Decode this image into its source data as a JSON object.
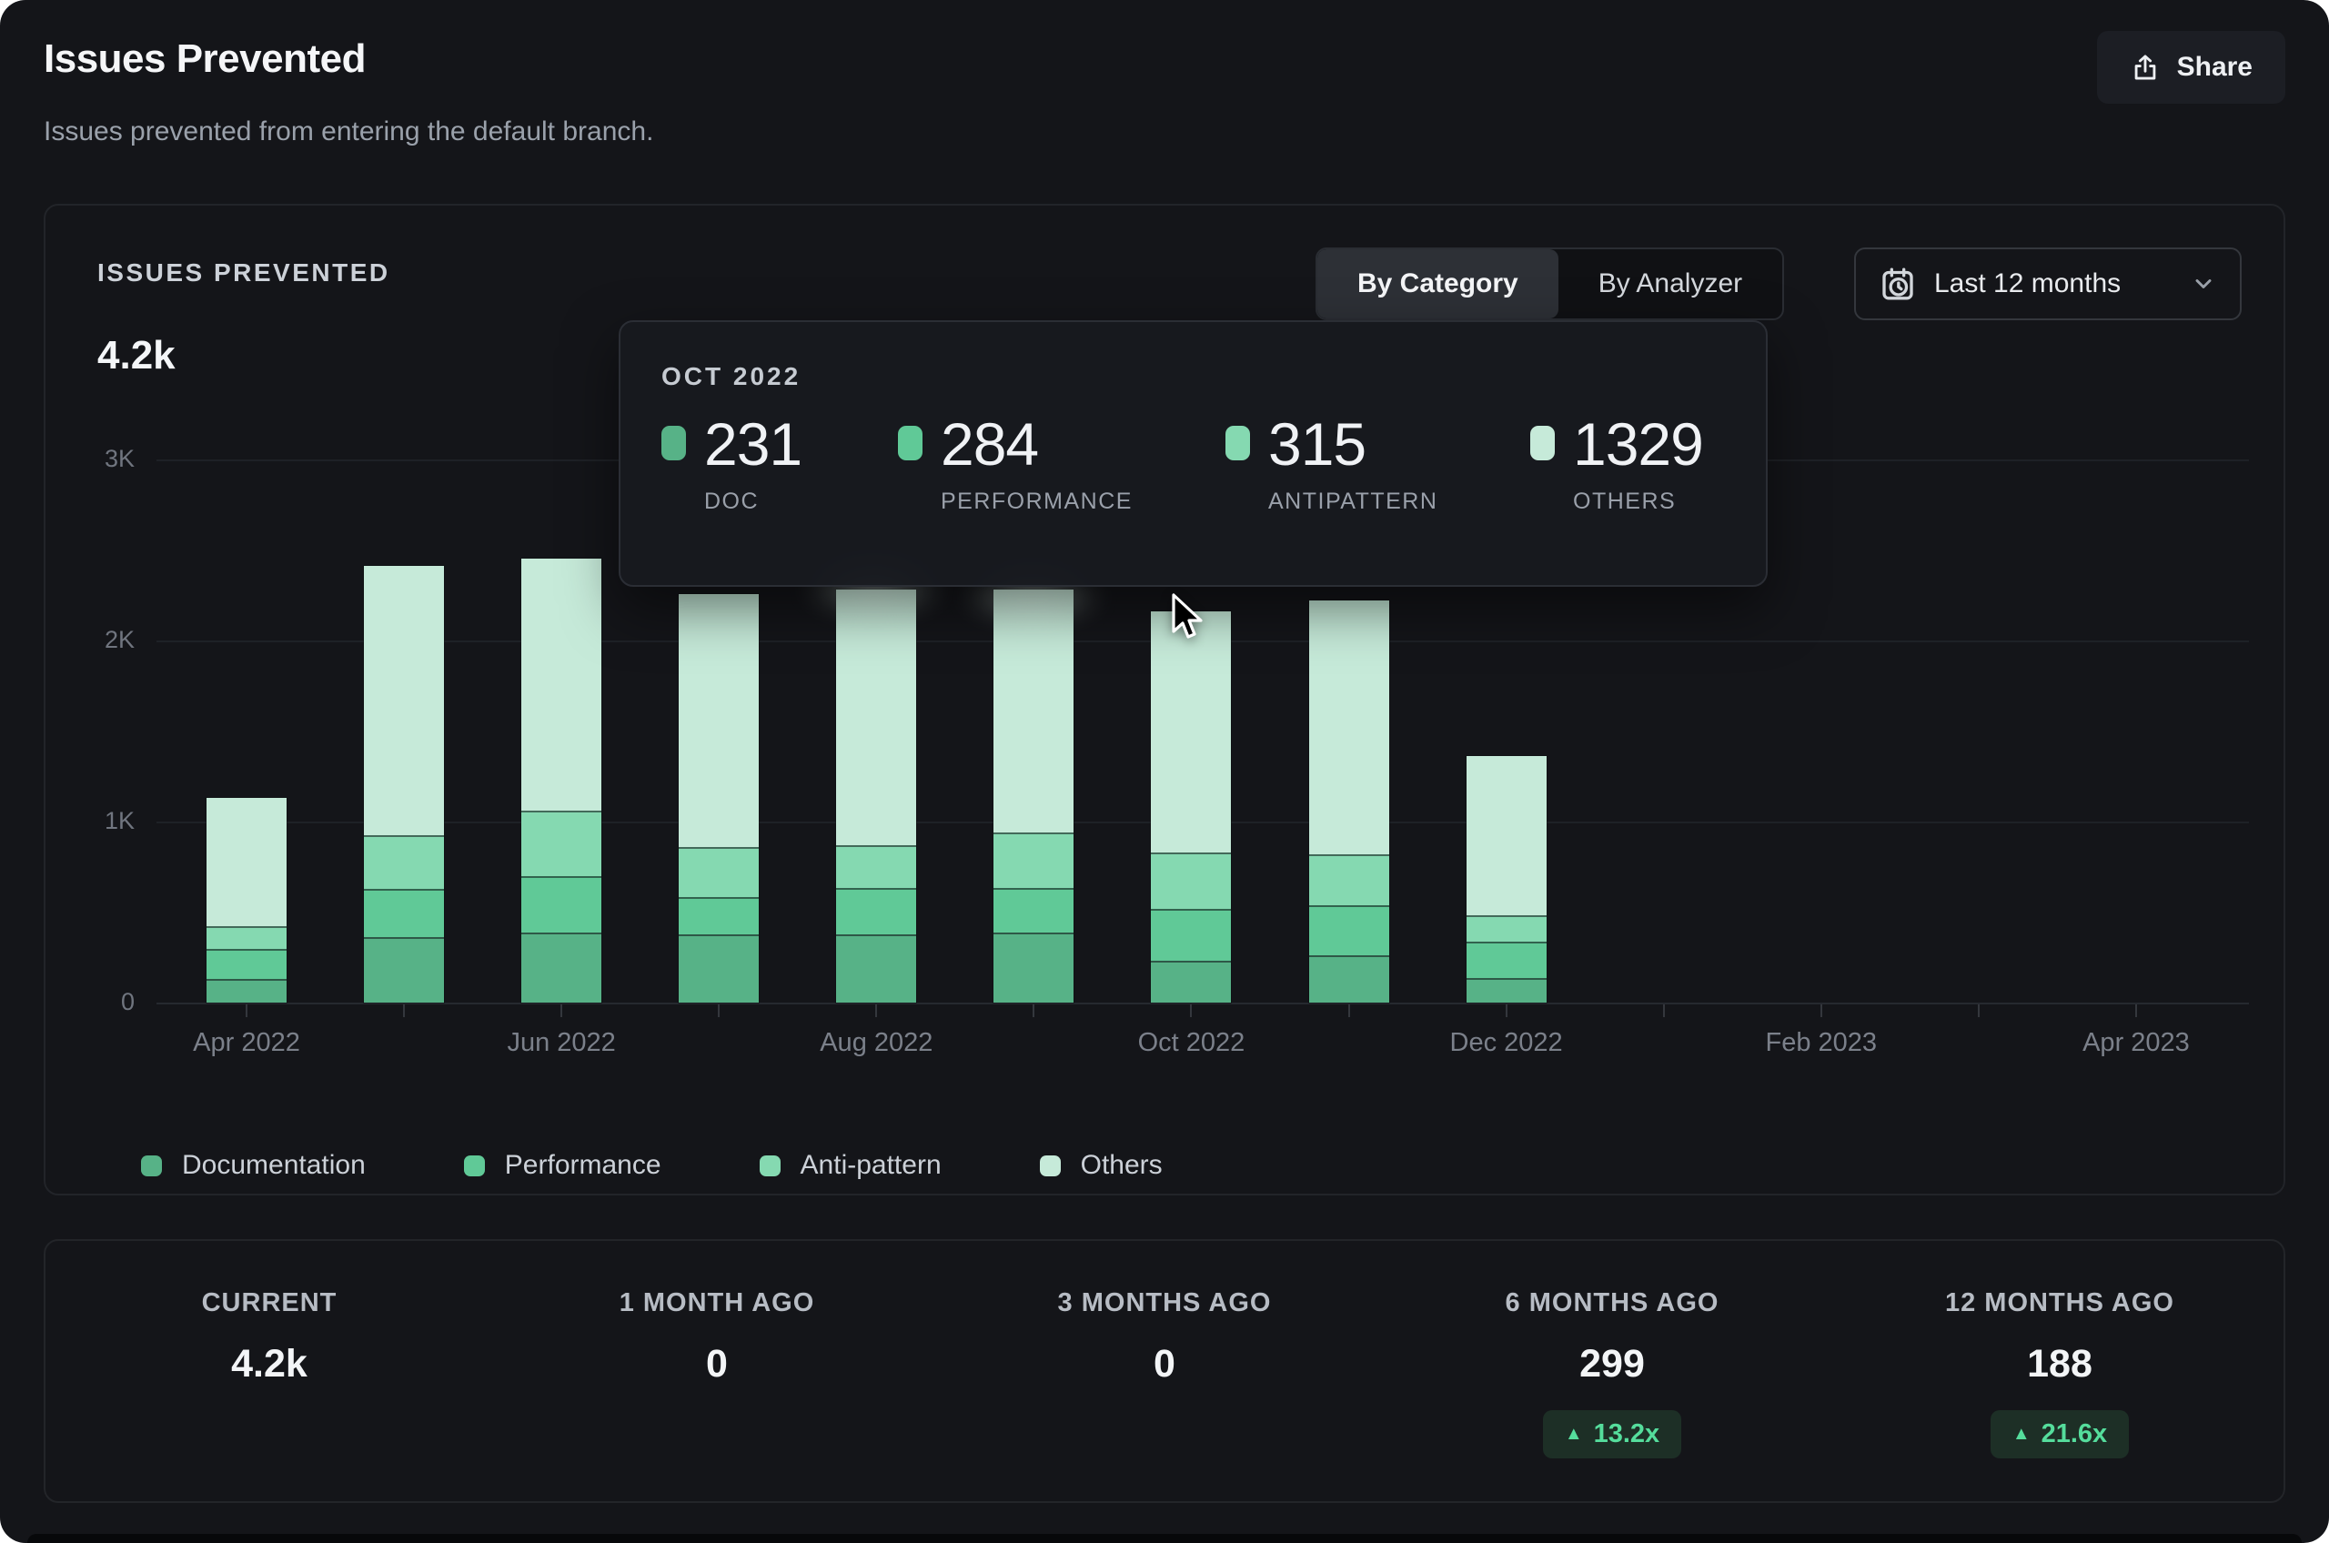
{
  "header": {
    "title": "Issues Prevented",
    "subtitle": "Issues prevented from entering the default branch.",
    "share_label": "Share"
  },
  "chart_card": {
    "label": "ISSUES PREVENTED",
    "total": "4.2k",
    "tabs": [
      {
        "label": "By Category",
        "active": true
      },
      {
        "label": "By Analyzer",
        "active": false
      }
    ],
    "range_selector": {
      "label": "Last 12 months"
    }
  },
  "tooltip": {
    "title": "OCT 2022",
    "items": [
      {
        "value": "231",
        "label": "DOC",
        "color": "#57b287"
      },
      {
        "value": "284",
        "label": "PERFORMANCE",
        "color": "#60c997"
      },
      {
        "value": "315",
        "label": "ANTIPATTERN",
        "color": "#85d9b1"
      },
      {
        "value": "1329",
        "label": "OTHERS",
        "color": "#c6ead9"
      }
    ]
  },
  "chart_data": {
    "type": "bar",
    "stacked": true,
    "title": "ISSUES PREVENTED",
    "xlabel": "",
    "ylabel": "",
    "ylim": [
      0,
      3000
    ],
    "grid": true,
    "legend_position": "bottom",
    "y_ticks": [
      "0",
      "1K",
      "2K",
      "3K"
    ],
    "months": [
      "Apr 2022",
      "May 2022",
      "Jun 2022",
      "Jul 2022",
      "Aug 2022",
      "Sep 2022",
      "Oct 2022",
      "Nov 2022",
      "Dec 2022",
      "Jan 2023",
      "Feb 2023",
      "Mar 2023",
      "Apr 2023"
    ],
    "x_tick_labels": [
      "Apr 2022",
      "Jun 2022",
      "Aug 2022",
      "Oct 2022",
      "Dec 2022",
      "Feb 2023",
      "Apr 2023"
    ],
    "series": [
      {
        "name": "Documentation",
        "color": "#57b287",
        "values": [
          130,
          360,
          385,
          375,
          375,
          385,
          231,
          260,
          135,
          0,
          0,
          0,
          0
        ]
      },
      {
        "name": "Performance",
        "color": "#60c997",
        "values": [
          165,
          270,
          315,
          210,
          260,
          250,
          284,
          280,
          200,
          0,
          0,
          0,
          0
        ]
      },
      {
        "name": "Anti-pattern",
        "color": "#85d9b1",
        "values": [
          125,
          295,
          360,
          275,
          235,
          305,
          315,
          280,
          145,
          0,
          0,
          0,
          0
        ]
      },
      {
        "name": "Others",
        "color": "#c6ead9",
        "values": [
          710,
          1485,
          1390,
          1395,
          1410,
          1340,
          1329,
          1400,
          880,
          0,
          0,
          0,
          0
        ]
      }
    ],
    "hovered_month": "Oct 2022"
  },
  "summary": {
    "columns": [
      {
        "label": "CURRENT",
        "value": "4.2k",
        "badge": null
      },
      {
        "label": "1 MONTH AGO",
        "value": "0",
        "badge": null
      },
      {
        "label": "3 MONTHS AGO",
        "value": "0",
        "badge": null
      },
      {
        "label": "6 MONTHS AGO",
        "value": "299",
        "badge": "13.2x"
      },
      {
        "label": "12 MONTHS AGO",
        "value": "188",
        "badge": "21.6x"
      }
    ]
  }
}
